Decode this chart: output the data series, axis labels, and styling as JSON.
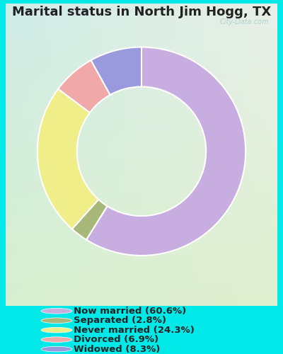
{
  "title": "Marital status in North Jim Hogg, TX",
  "title_fontsize": 13,
  "title_fontweight": "bold",
  "title_color": "#222222",
  "slices": [
    {
      "label": "Now married (60.6%)",
      "value": 60.6,
      "color": "#c8aee0"
    },
    {
      "label": "Separated (2.8%)",
      "value": 2.8,
      "color": "#a8b87a"
    },
    {
      "label": "Never married (24.3%)",
      "value": 24.3,
      "color": "#f0ee88"
    },
    {
      "label": "Divorced (6.9%)",
      "value": 6.9,
      "color": "#f0a8a8"
    },
    {
      "label": "Widowed (8.3%)",
      "value": 8.3,
      "color": "#9999dd"
    }
  ],
  "legend_fontsize": 9.5,
  "outer_bg": "#00e8e8",
  "chart_panel_color": "#e8f5f0",
  "watermark_text": "City-Data.com",
  "start_angle": 90,
  "donut_width": 0.38
}
